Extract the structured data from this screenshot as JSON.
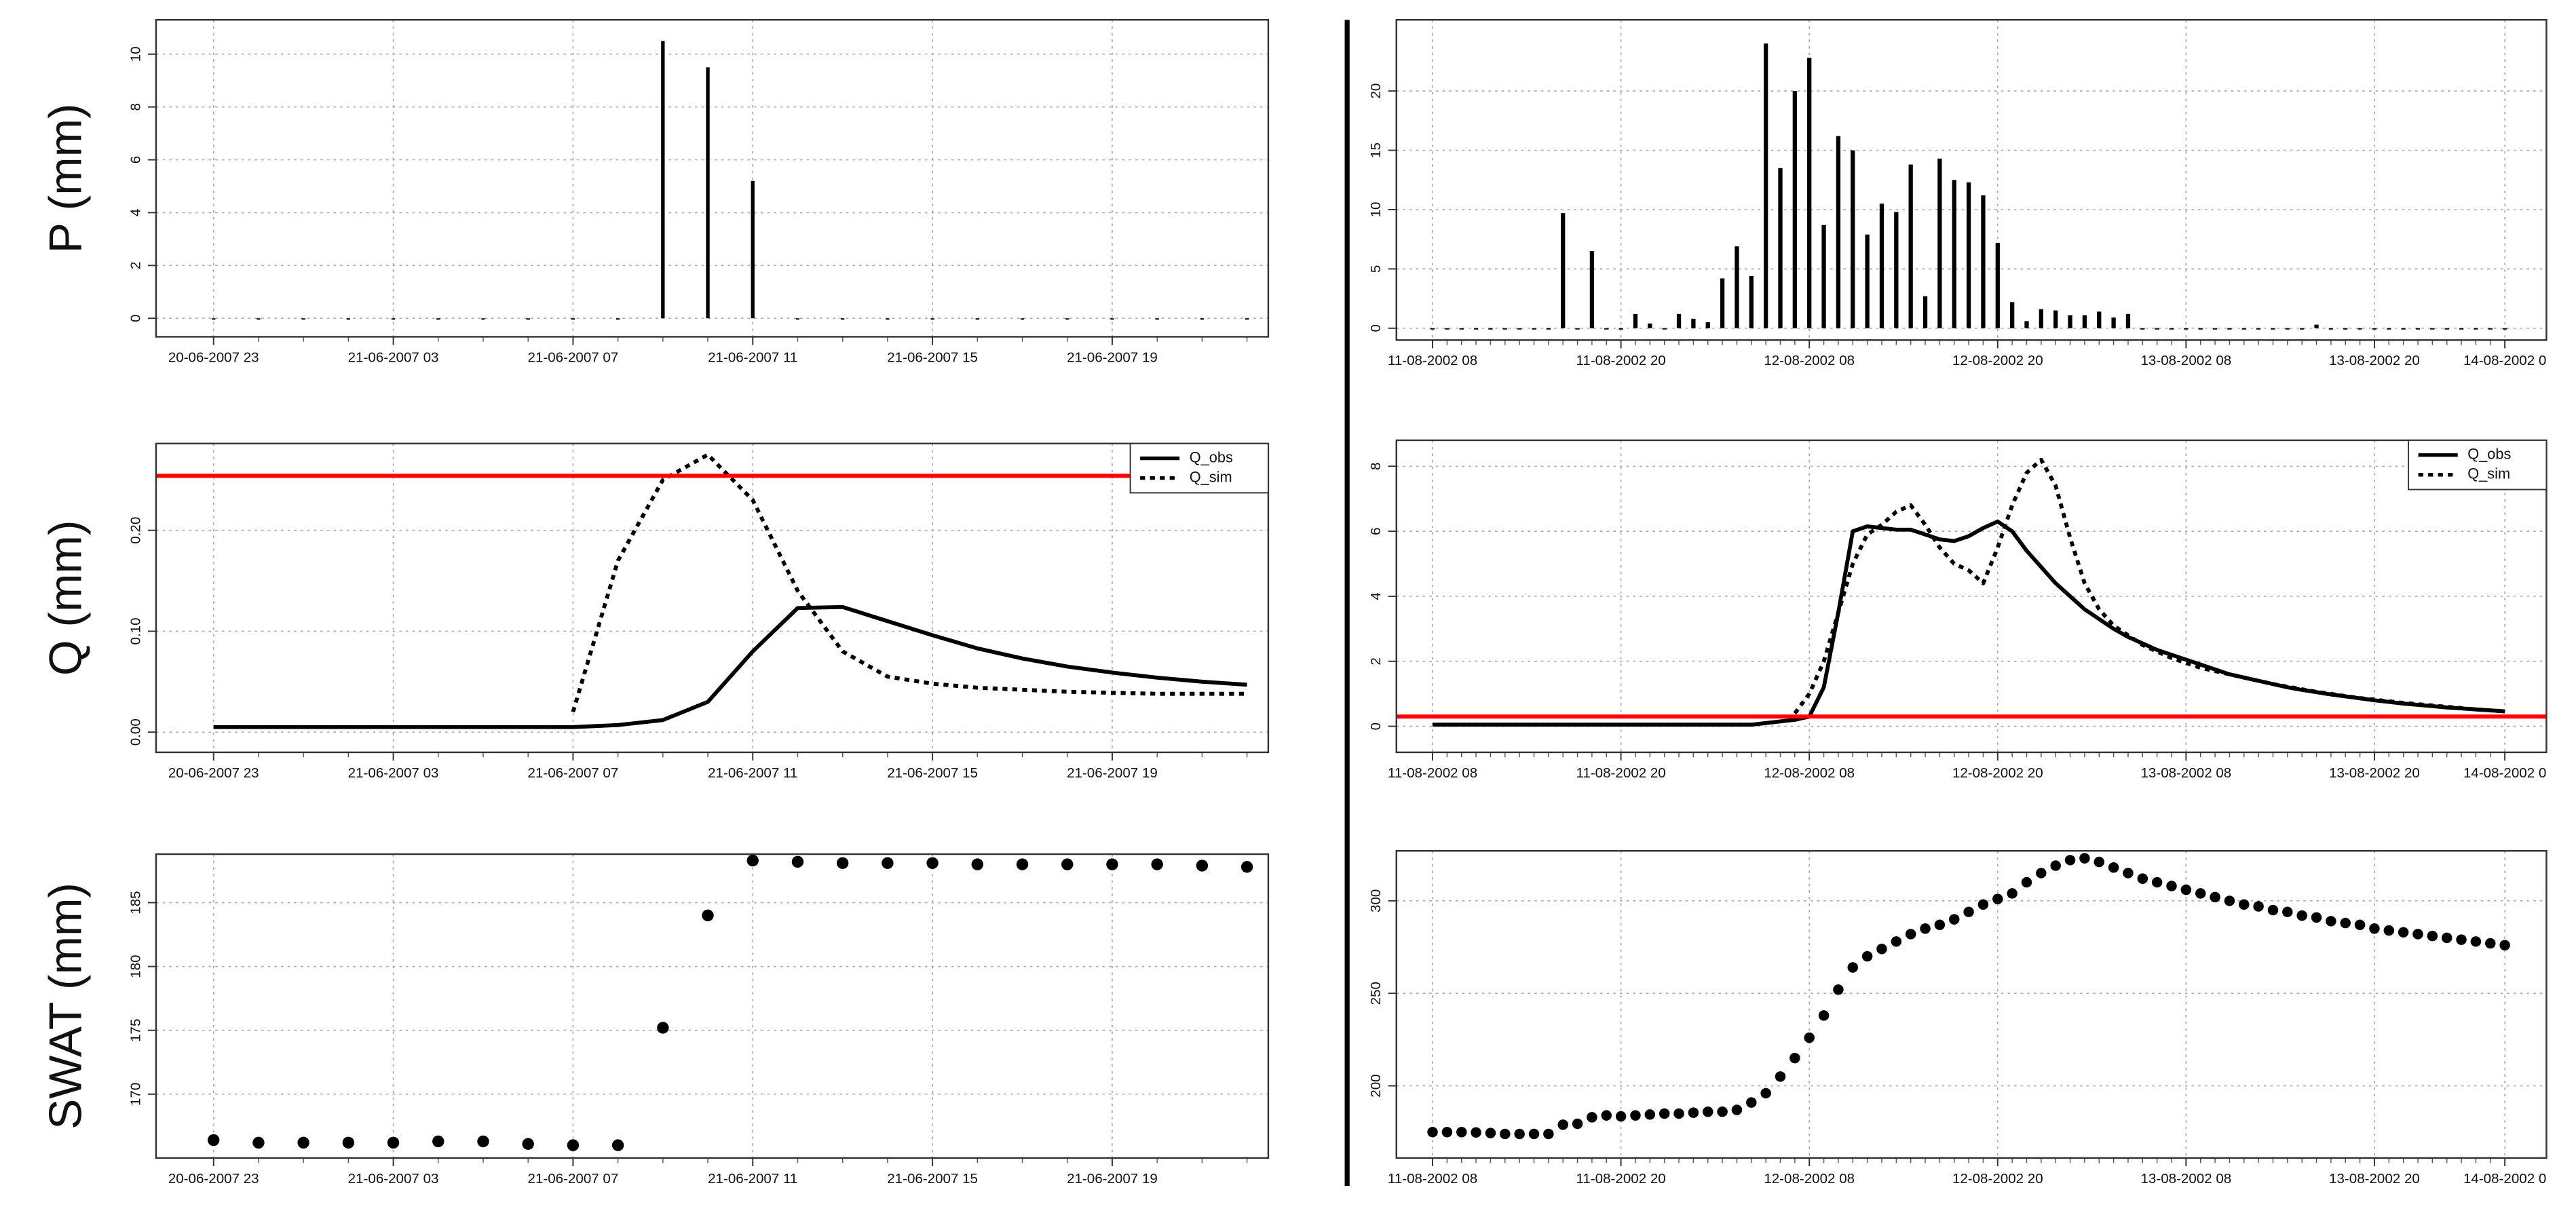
{
  "chart_data": [
    {
      "type": "bar",
      "ylabel": "P (mm)",
      "categories": [
        "20-06-2007 23",
        null,
        null,
        null,
        "21-06-2007 03",
        null,
        null,
        null,
        "21-06-2007 07",
        null,
        null,
        null,
        "21-06-2007 11",
        null,
        null,
        null,
        "21-06-2007 15",
        null,
        null,
        null,
        "21-06-2007 19",
        null,
        null,
        null
      ],
      "values": [
        0,
        0,
        0,
        0,
        0,
        0,
        0,
        0,
        0,
        0,
        10.5,
        9.5,
        5.2,
        0,
        0,
        0,
        0,
        0,
        0,
        0,
        0,
        0,
        0,
        0
      ],
      "color": "#000000",
      "ylim": [
        -0.7,
        11.3
      ],
      "yticks": [
        0,
        2,
        4,
        6,
        8,
        10
      ],
      "grid": true
    },
    {
      "type": "line",
      "ylabel": "Q (mm)",
      "categories": [
        "20-06-2007 23",
        null,
        null,
        null,
        "21-06-2007 03",
        null,
        null,
        null,
        "21-06-2007 07",
        null,
        null,
        null,
        "21-06-2007 11",
        null,
        null,
        null,
        "21-06-2007 15",
        null,
        null,
        null,
        "21-06-2007 19",
        null,
        null,
        null
      ],
      "series": [
        {
          "name": "Q_obs",
          "color": "#000000",
          "dash": "solid",
          "values": [
            0.005,
            0.005,
            0.005,
            0.005,
            0.005,
            0.005,
            0.005,
            0.005,
            0.005,
            0.007,
            0.012,
            0.03,
            0.08,
            0.123,
            0.124,
            0.11,
            0.096,
            0.083,
            0.073,
            0.065,
            0.059,
            0.054,
            0.05,
            0.047
          ]
        },
        {
          "name": "Q_sim",
          "color": "#000000",
          "dash": "dotted",
          "values": [
            null,
            null,
            null,
            null,
            null,
            null,
            null,
            null,
            0.02,
            0.17,
            0.25,
            0.275,
            0.23,
            0.14,
            0.08,
            0.055,
            0.048,
            0.044,
            0.042,
            0.04,
            0.039,
            0.038,
            0.038,
            0.038
          ]
        }
      ],
      "ylim": [
        -0.02,
        0.286
      ],
      "yticks": [
        {
          "value": 0,
          "label": "0.00"
        },
        {
          "value": 0.1,
          "label": "0.10"
        },
        {
          "value": 0.2,
          "label": "0.20"
        }
      ],
      "reference_line": {
        "value": 0.254,
        "color": "#ff0000"
      },
      "grid": true,
      "legend": "top-right"
    },
    {
      "type": "scatter",
      "ylabel": "SWAT (mm)",
      "categories": [
        "20-06-2007 23",
        null,
        null,
        null,
        "21-06-2007 03",
        null,
        null,
        null,
        "21-06-2007 07",
        null,
        null,
        null,
        "21-06-2007 11",
        null,
        null,
        null,
        "21-06-2007 15",
        null,
        null,
        null,
        "21-06-2007 19",
        null,
        null,
        null
      ],
      "values": [
        166.4,
        166.2,
        166.2,
        166.2,
        166.2,
        166.3,
        166.3,
        166.1,
        166.0,
        166.0,
        175.2,
        184.0,
        188.3,
        188.2,
        188.1,
        188.1,
        188.1,
        188.0,
        188.0,
        188.0,
        188.0,
        188.0,
        187.9,
        187.8
      ],
      "color": "#000000",
      "ylim": [
        165,
        188.8
      ],
      "yticks": [
        170,
        175,
        180,
        185
      ],
      "grid": true
    },
    {
      "type": "bar",
      "categories": [
        "11-08-2002 08",
        null,
        null,
        null,
        null,
        null,
        null,
        null,
        null,
        null,
        null,
        null,
        null,
        "11-08-2002 20",
        null,
        null,
        null,
        null,
        null,
        null,
        null,
        null,
        null,
        null,
        null,
        null,
        "12-08-2002 08",
        null,
        null,
        null,
        null,
        null,
        null,
        null,
        null,
        null,
        null,
        null,
        null,
        "12-08-2002 20",
        null,
        null,
        null,
        null,
        null,
        null,
        null,
        null,
        null,
        null,
        null,
        null,
        "13-08-2002 08",
        null,
        null,
        null,
        null,
        null,
        null,
        null,
        null,
        null,
        null,
        null,
        null,
        "13-08-2002 20",
        null,
        null,
        null,
        null,
        null,
        null,
        null,
        null,
        "14-08-2002 0"
      ],
      "values": [
        0,
        0,
        0,
        0,
        0,
        0,
        0,
        0,
        0,
        9.7,
        0,
        6.5,
        0,
        0,
        1.2,
        0.4,
        0,
        1.2,
        0.8,
        0.5,
        4.2,
        6.9,
        4.4,
        24,
        13.5,
        20,
        22.8,
        8.7,
        16.2,
        15,
        7.9,
        10.5,
        9.8,
        13.8,
        2.7,
        14.3,
        12.5,
        12.3,
        11.2,
        7.2,
        2.2,
        0.6,
        1.6,
        1.5,
        1.1,
        1.1,
        1.4,
        0.9,
        1.2,
        0,
        0,
        0,
        0,
        0,
        0,
        0,
        0,
        0,
        0,
        0,
        0,
        0.3,
        0,
        0,
        0,
        0,
        0,
        0,
        0,
        0,
        0,
        0,
        0,
        0,
        0
      ],
      "color": "#000000",
      "ylim": [
        -1,
        26
      ],
      "yticks": [
        0,
        5,
        10,
        15,
        20
      ],
      "grid": true
    },
    {
      "type": "line",
      "categories": [
        "11-08-2002 08",
        null,
        null,
        null,
        null,
        null,
        null,
        null,
        null,
        null,
        null,
        null,
        null,
        "11-08-2002 20",
        null,
        null,
        null,
        null,
        null,
        null,
        null,
        null,
        null,
        null,
        null,
        null,
        "12-08-2002 08",
        null,
        null,
        null,
        null,
        null,
        null,
        null,
        null,
        null,
        null,
        null,
        null,
        "12-08-2002 20",
        null,
        null,
        null,
        null,
        null,
        null,
        null,
        null,
        null,
        null,
        null,
        null,
        "13-08-2002 08",
        null,
        null,
        null,
        null,
        null,
        null,
        null,
        null,
        null,
        null,
        null,
        null,
        "13-08-2002 20",
        null,
        null,
        null,
        null,
        null,
        null,
        null,
        null,
        "14-08-2002 0"
      ],
      "series": [
        {
          "name": "Q_obs",
          "color": "#000000",
          "dash": "solid",
          "values": [
            0.05,
            0.05,
            0.05,
            0.05,
            0.05,
            0.05,
            0.05,
            0.05,
            0.05,
            0.05,
            0.05,
            0.05,
            0.05,
            0.05,
            0.05,
            0.05,
            0.05,
            0.05,
            0.05,
            0.05,
            0.05,
            0.05,
            0.05,
            0.1,
            0.15,
            0.2,
            0.3,
            1.2,
            3.5,
            6.0,
            6.15,
            6.1,
            6.05,
            6.05,
            5.9,
            5.75,
            5.7,
            5.85,
            6.1,
            6.3,
            6.0,
            5.4,
            4.9,
            4.4,
            4.0,
            3.6,
            3.3,
            3.0,
            2.75,
            2.55,
            2.35,
            2.2,
            2.05,
            1.9,
            1.75,
            1.6,
            1.5,
            1.4,
            1.3,
            1.2,
            1.12,
            1.05,
            0.98,
            0.92,
            0.86,
            0.8,
            0.75,
            0.7,
            0.66,
            0.62,
            0.58,
            0.55,
            0.52,
            0.49,
            0.46
          ]
        },
        {
          "name": "Q_sim",
          "color": "#000000",
          "dash": "dotted",
          "values": [
            null,
            null,
            null,
            null,
            null,
            null,
            null,
            null,
            null,
            null,
            null,
            null,
            null,
            null,
            null,
            null,
            null,
            null,
            null,
            null,
            null,
            null,
            null,
            null,
            null,
            0.4,
            1.0,
            2.0,
            3.5,
            5.0,
            5.9,
            6.2,
            6.6,
            6.8,
            6.2,
            5.5,
            5.0,
            4.8,
            4.4,
            5.5,
            6.8,
            7.8,
            8.2,
            7.4,
            5.8,
            4.4,
            3.6,
            3.1,
            2.8,
            2.5,
            2.3,
            2.1,
            1.95,
            1.8,
            1.7,
            1.6,
            1.5,
            1.4,
            1.3,
            1.22,
            1.14,
            1.06,
            1.0,
            0.93,
            0.87,
            0.82,
            0.77,
            0.72,
            0.68,
            0.64,
            0.6,
            0.56,
            0.52,
            0.49,
            0.46
          ]
        }
      ],
      "ylim": [
        -0.8,
        8.8
      ],
      "yticks": [
        0,
        2,
        4,
        6,
        8
      ],
      "reference_line": {
        "value": 0.3,
        "color": "#ff0000"
      },
      "grid": true,
      "legend": "top-right"
    },
    {
      "type": "scatter",
      "categories": [
        "11-08-2002 08",
        null,
        null,
        null,
        null,
        null,
        null,
        null,
        null,
        null,
        null,
        null,
        null,
        "11-08-2002 20",
        null,
        null,
        null,
        null,
        null,
        null,
        null,
        null,
        null,
        null,
        null,
        null,
        "12-08-2002 08",
        null,
        null,
        null,
        null,
        null,
        null,
        null,
        null,
        null,
        null,
        null,
        null,
        "12-08-2002 20",
        null,
        null,
        null,
        null,
        null,
        null,
        null,
        null,
        null,
        null,
        null,
        null,
        "13-08-2002 08",
        null,
        null,
        null,
        null,
        null,
        null,
        null,
        null,
        null,
        null,
        null,
        null,
        "13-08-2002 20",
        null,
        null,
        null,
        null,
        null,
        null,
        null,
        null,
        "14-08-2002 0"
      ],
      "values": [
        175,
        175,
        175,
        174.8,
        174.5,
        174,
        174,
        174,
        174,
        179,
        179.5,
        183,
        184,
        183.5,
        184,
        184.5,
        185,
        185,
        185.5,
        186,
        186,
        187,
        191,
        196,
        205,
        215,
        226,
        238,
        252,
        264,
        270,
        274,
        278,
        282,
        285,
        287,
        290,
        294,
        298,
        301,
        304,
        310,
        315,
        319,
        322,
        323,
        321,
        318,
        315,
        312,
        310,
        308,
        306,
        304,
        302,
        300,
        298,
        297,
        295,
        294,
        292,
        291,
        289,
        288,
        287,
        285,
        284,
        283,
        282,
        281,
        280,
        279,
        278,
        277,
        276
      ],
      "color": "#000000",
      "ylim": [
        161,
        327
      ],
      "yticks": [
        200,
        250,
        300
      ],
      "grid": true
    }
  ]
}
